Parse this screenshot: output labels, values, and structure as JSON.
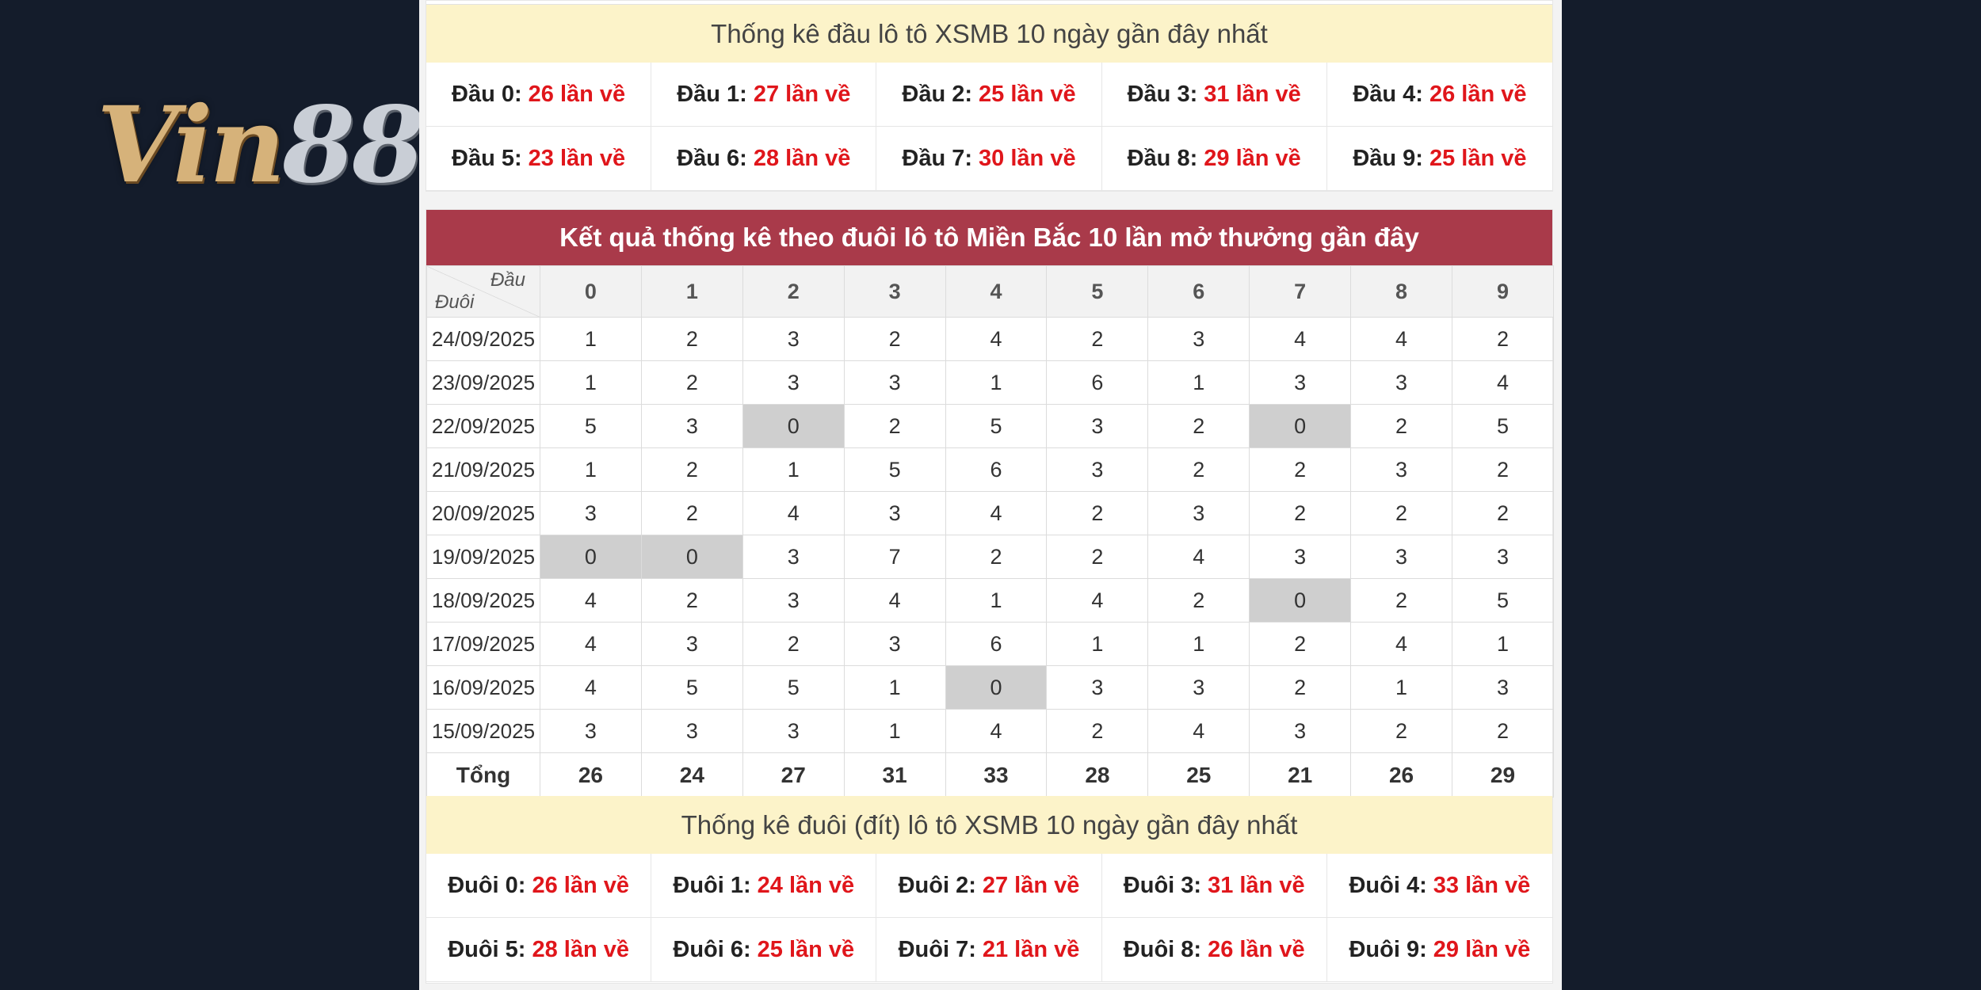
{
  "brand": {
    "logo_text_a": "Vin",
    "logo_text_b": "88"
  },
  "dau_section": {
    "title": "Thống kê đầu lô tô XSMB 10 ngày gần đây nhất",
    "items": [
      {
        "label": "Đầu 0:",
        "value": "26 lần về"
      },
      {
        "label": "Đầu 1:",
        "value": "27 lần về"
      },
      {
        "label": "Đầu 2:",
        "value": "25 lần về"
      },
      {
        "label": "Đầu 3:",
        "value": "31 lần về"
      },
      {
        "label": "Đầu 4:",
        "value": "26 lần về"
      },
      {
        "label": "Đầu 5:",
        "value": "23 lần về"
      },
      {
        "label": "Đầu 6:",
        "value": "28 lần về"
      },
      {
        "label": "Đầu 7:",
        "value": "30 lần về"
      },
      {
        "label": "Đầu 8:",
        "value": "29 lần về"
      },
      {
        "label": "Đầu 9:",
        "value": "25 lần về"
      }
    ]
  },
  "duoi_table": {
    "title": "Kết quả thống kê theo đuôi lô tô Miền Bắc 10 lần mở thưởng gần đây",
    "corner_top": "Đầu",
    "corner_bottom": "Đuôi",
    "columns": [
      "0",
      "1",
      "2",
      "3",
      "4",
      "5",
      "6",
      "7",
      "8",
      "9"
    ],
    "rows": [
      {
        "date": "24/09/2025",
        "values": [
          "1",
          "2",
          "3",
          "2",
          "4",
          "2",
          "3",
          "4",
          "4",
          "2"
        ]
      },
      {
        "date": "23/09/2025",
        "values": [
          "1",
          "2",
          "3",
          "3",
          "1",
          "6",
          "1",
          "3",
          "3",
          "4"
        ]
      },
      {
        "date": "22/09/2025",
        "values": [
          "5",
          "3",
          "0",
          "2",
          "5",
          "3",
          "2",
          "0",
          "2",
          "5"
        ]
      },
      {
        "date": "21/09/2025",
        "values": [
          "1",
          "2",
          "1",
          "5",
          "6",
          "3",
          "2",
          "2",
          "3",
          "2"
        ]
      },
      {
        "date": "20/09/2025",
        "values": [
          "3",
          "2",
          "4",
          "3",
          "4",
          "2",
          "3",
          "2",
          "2",
          "2"
        ]
      },
      {
        "date": "19/09/2025",
        "values": [
          "0",
          "0",
          "3",
          "7",
          "2",
          "2",
          "4",
          "3",
          "3",
          "3"
        ]
      },
      {
        "date": "18/09/2025",
        "values": [
          "4",
          "2",
          "3",
          "4",
          "1",
          "4",
          "2",
          "0",
          "2",
          "5"
        ]
      },
      {
        "date": "17/09/2025",
        "values": [
          "4",
          "3",
          "2",
          "3",
          "6",
          "1",
          "1",
          "2",
          "4",
          "1"
        ]
      },
      {
        "date": "16/09/2025",
        "values": [
          "4",
          "5",
          "5",
          "1",
          "0",
          "3",
          "3",
          "2",
          "1",
          "3"
        ]
      },
      {
        "date": "15/09/2025",
        "values": [
          "3",
          "3",
          "3",
          "1",
          "4",
          "2",
          "4",
          "3",
          "2",
          "2"
        ]
      }
    ],
    "total_label": "Tổng",
    "totals": [
      "26",
      "24",
      "27",
      "31",
      "33",
      "28",
      "25",
      "21",
      "26",
      "29"
    ]
  },
  "duoi_section": {
    "title": "Thống kê đuôi (đít) lô tô XSMB 10 ngày gần đây nhất",
    "items": [
      {
        "label": "Đuôi 0:",
        "value": "26 lần về"
      },
      {
        "label": "Đuôi 1:",
        "value": "24 lần về"
      },
      {
        "label": "Đuôi 2:",
        "value": "27 lần về"
      },
      {
        "label": "Đuôi 3:",
        "value": "31 lần về"
      },
      {
        "label": "Đuôi 4:",
        "value": "33 lần về"
      },
      {
        "label": "Đuôi 5:",
        "value": "28 lần về"
      },
      {
        "label": "Đuôi 6:",
        "value": "25 lần về"
      },
      {
        "label": "Đuôi 7:",
        "value": "21 lần về"
      },
      {
        "label": "Đuôi 8:",
        "value": "26 lần về"
      },
      {
        "label": "Đuôi 9:",
        "value": "29 lần về"
      }
    ]
  }
}
